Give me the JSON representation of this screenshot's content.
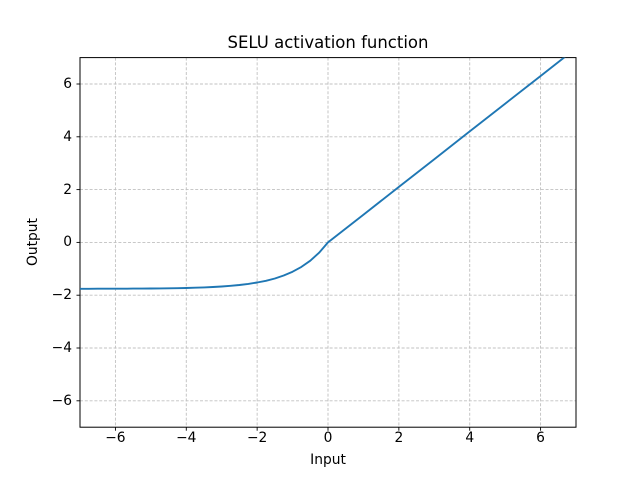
{
  "figure": {
    "background": "#ffffff",
    "spine_color": "#000000",
    "grid_color": "#c0c0c0",
    "tick_color": "#000000"
  },
  "chart_data": {
    "type": "line",
    "title": "SELU activation function",
    "xlabel": "Input",
    "ylabel": "Output",
    "xlim": [
      -7,
      7
    ],
    "ylim": [
      -7,
      7
    ],
    "xticks": [
      -6,
      -4,
      -2,
      0,
      2,
      4,
      6
    ],
    "yticks": [
      -6,
      -4,
      -2,
      0,
      2,
      4,
      6
    ],
    "xtick_labels": [
      "−6",
      "−4",
      "−2",
      "0",
      "2",
      "4",
      "6"
    ],
    "ytick_labels": [
      "−6",
      "−4",
      "−2",
      "0",
      "2",
      "4",
      "6"
    ],
    "grid": true,
    "grid_style": "dashed",
    "legend": null,
    "series": [
      {
        "name": "SELU",
        "color": "#1f77b4",
        "x": [
          -7,
          -6.75,
          -6.5,
          -6.25,
          -6,
          -5.75,
          -5.5,
          -5.25,
          -5,
          -4.75,
          -4.5,
          -4.25,
          -4,
          -3.75,
          -3.5,
          -3.25,
          -3,
          -2.75,
          -2.5,
          -2.25,
          -2,
          -1.75,
          -1.5,
          -1.25,
          -1,
          -0.75,
          -0.5,
          -0.25,
          0,
          1,
          2,
          3,
          4,
          5,
          6,
          7
        ],
        "y": [
          -1.7566,
          -1.7561,
          -1.7555,
          -1.7548,
          -1.7538,
          -1.7526,
          -1.751,
          -1.749,
          -1.7463,
          -1.743,
          -1.7387,
          -1.7331,
          -1.726,
          -1.7168,
          -1.7051,
          -1.69,
          -1.6706,
          -1.6458,
          -1.6139,
          -1.5729,
          -1.5202,
          -1.4527,
          -1.3659,
          -1.2544,
          -1.1114,
          -0.9276,
          -0.6918,
          -0.3889,
          0,
          1.0507,
          2.1014,
          3.1521,
          4.2028,
          5.2535,
          6.3042,
          7.3549
        ]
      }
    ]
  }
}
